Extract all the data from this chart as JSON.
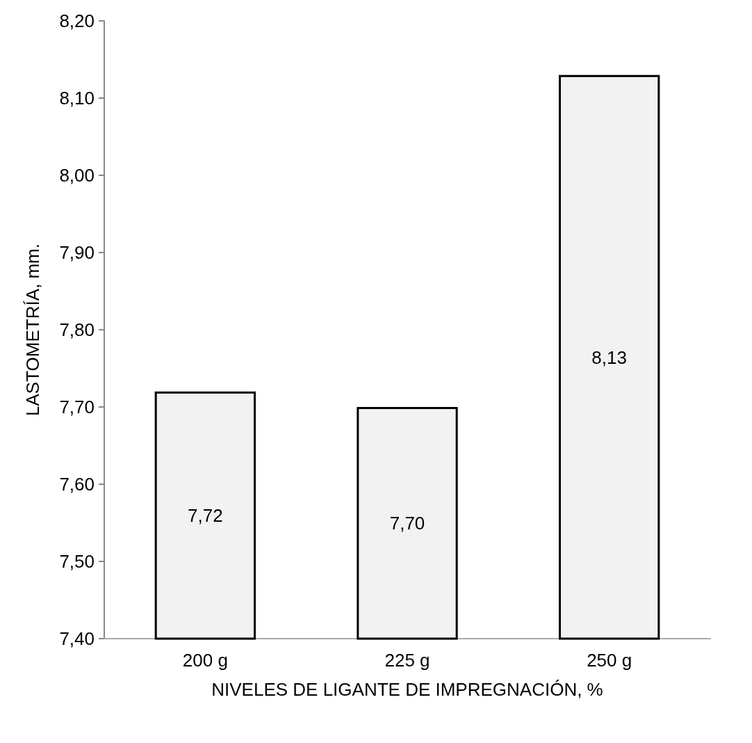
{
  "chart_data": {
    "type": "bar",
    "xlabel": "NIVELES DE LIGANTE DE IMPREGNACIÓN, %",
    "ylabel": "LASTOMETRÍA, mm.",
    "categories": [
      "200 g",
      "225 g",
      "250 g"
    ],
    "values": [
      7.72,
      7.7,
      8.13
    ],
    "value_labels": [
      "7,72",
      "7,70",
      "8,13"
    ],
    "color": "#f2f2f2",
    "ylim": [
      7.4,
      8.2
    ],
    "yticks": [
      {
        "value": 7.4,
        "label": "7,40"
      },
      {
        "value": 7.5,
        "label": "7,50"
      },
      {
        "value": 7.6,
        "label": "7,60"
      },
      {
        "value": 7.7,
        "label": "7,70"
      },
      {
        "value": 7.8,
        "label": "7,80"
      },
      {
        "value": 7.9,
        "label": "7,90"
      },
      {
        "value": 8.0,
        "label": "8,00"
      },
      {
        "value": 8.1,
        "label": "8,10"
      },
      {
        "value": 8.2,
        "label": "8,20"
      }
    ],
    "grid": false
  }
}
